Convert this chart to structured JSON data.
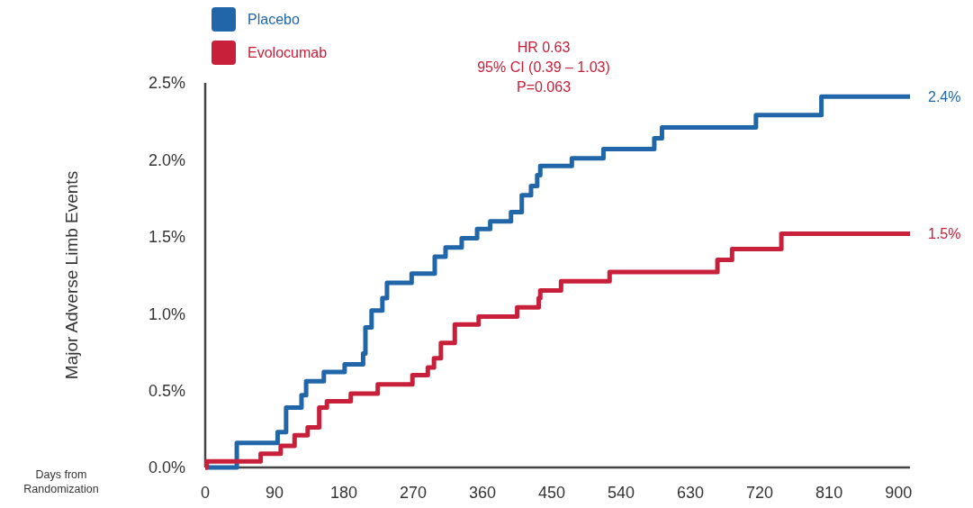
{
  "chart_data": {
    "type": "step",
    "ylabel": "Major Adverse Limb Events",
    "xlabel": "Days from Randomization",
    "xlim": [
      0,
      915
    ],
    "xticks": [
      0,
      90,
      180,
      270,
      360,
      450,
      540,
      630,
      720,
      810,
      900
    ],
    "ylim": [
      0,
      2.5
    ],
    "yticks": [
      {
        "value": 0,
        "label": "0.0%"
      },
      {
        "value": 0.5,
        "label": "0.5%"
      },
      {
        "value": 1,
        "label": "1.0%"
      },
      {
        "value": 1.5,
        "label": "1.5%"
      },
      {
        "value": 2,
        "label": "2.0%"
      },
      {
        "value": 2.5,
        "label": "2.5%"
      }
    ],
    "grid": false,
    "legend": "top left",
    "line_style": "solid",
    "marker": "none",
    "series": [
      {
        "name": "Placebo",
        "color": "#2166a8",
        "x": [
          0,
          20,
          41,
          94,
          105,
          125,
          131,
          154,
          181,
          205,
          208,
          216,
          230,
          236,
          268,
          298,
          312,
          333,
          353,
          370,
          397,
          411,
          423,
          431,
          435,
          476,
          517,
          583,
          593,
          715,
          800,
          915
        ],
        "values": [
          0,
          0,
          0.16,
          0.23,
          0.39,
          0.47,
          0.56,
          0.62,
          0.67,
          0.74,
          0.91,
          1.02,
          1.1,
          1.2,
          1.26,
          1.37,
          1.43,
          1.49,
          1.55,
          1.6,
          1.66,
          1.77,
          1.83,
          1.9,
          1.96,
          2.01,
          2.07,
          2.14,
          2.21,
          2.29,
          2.41,
          2.41
        ]
      },
      {
        "name": "Evolocumab",
        "color": "#c8203a",
        "x": [
          0,
          2,
          72,
          98,
          116,
          133,
          148,
          158,
          189,
          224,
          269,
          289,
          297,
          306,
          324,
          355,
          405,
          433,
          435,
          462,
          525,
          665,
          684,
          748,
          915
        ],
        "values": [
          0,
          0.04,
          0.09,
          0.14,
          0.21,
          0.26,
          0.39,
          0.43,
          0.48,
          0.54,
          0.6,
          0.65,
          0.71,
          0.81,
          0.93,
          0.98,
          1.04,
          1.1,
          1.15,
          1.21,
          1.27,
          1.35,
          1.42,
          1.52,
          1.52
        ]
      }
    ],
    "annotations": [
      {
        "text": "2.4%",
        "x": 915,
        "y": 2.41
      },
      {
        "text": "1.5%",
        "x": 915,
        "y": 1.52
      },
      "HR 0.63",
      "95% CI (0.39 – 1.03)",
      "P=0.063"
    ]
  }
}
